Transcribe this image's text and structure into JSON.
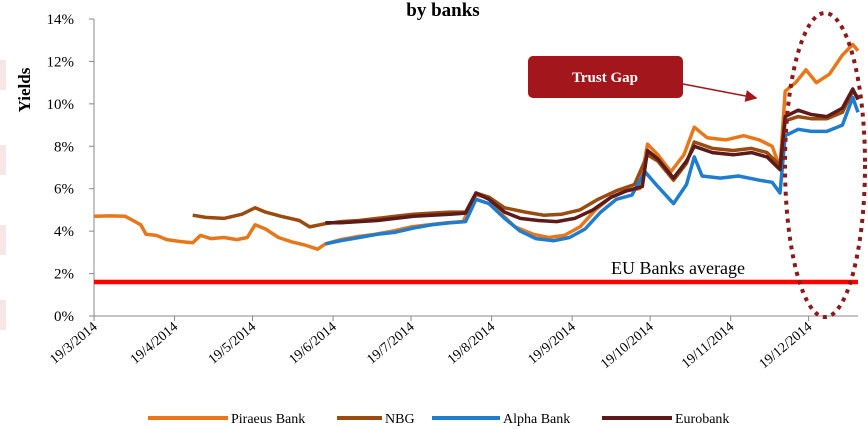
{
  "chart_data": {
    "type": "line",
    "title": "by banks",
    "ylabel": "Yields",
    "xlabel": "",
    "y_ticks": [
      "0%",
      "2%",
      "4%",
      "6%",
      "8%",
      "10%",
      "12%",
      "14%"
    ],
    "ylim": [
      0,
      14
    ],
    "x_ticks": [
      "19/3/2014",
      "19/4/2014",
      "19/5/2014",
      "19/6/2014",
      "19/7/2014",
      "19/8/2014",
      "19/9/2014",
      "19/10/2014",
      "19/11/2014",
      "19/12/2014"
    ],
    "xlim": [
      "2014-03-19",
      "2015-01-07"
    ],
    "grid": false,
    "legend_position": "bottom",
    "reference_line": {
      "label": "EU Banks average",
      "value": 1.6,
      "color": "#ff0000"
    },
    "annotation": {
      "label": "Trust Gap",
      "box_color": "#a3161c",
      "ellipse_color": "#8b1a1a"
    },
    "series": [
      {
        "name": "Piraeus Bank",
        "color": "#e8771c",
        "points": [
          [
            "2014-03-19",
            4.7
          ],
          [
            "2014-03-25",
            4.72
          ],
          [
            "2014-03-31",
            4.7
          ],
          [
            "2014-04-03",
            4.5
          ],
          [
            "2014-04-06",
            4.3
          ],
          [
            "2014-04-08",
            3.85
          ],
          [
            "2014-04-12",
            3.8
          ],
          [
            "2014-04-16",
            3.6
          ],
          [
            "2014-04-22",
            3.5
          ],
          [
            "2014-04-26",
            3.45
          ],
          [
            "2014-04-29",
            3.8
          ],
          [
            "2014-05-03",
            3.65
          ],
          [
            "2014-05-08",
            3.7
          ],
          [
            "2014-05-13",
            3.6
          ],
          [
            "2014-05-17",
            3.7
          ],
          [
            "2014-05-20",
            4.3
          ],
          [
            "2014-05-24",
            4.1
          ],
          [
            "2014-05-29",
            3.7
          ],
          [
            "2014-06-03",
            3.5
          ],
          [
            "2014-06-08",
            3.35
          ],
          [
            "2014-06-13",
            3.15
          ],
          [
            "2014-06-16",
            3.4
          ],
          [
            "2014-06-22",
            3.6
          ],
          [
            "2014-06-29",
            3.75
          ],
          [
            "2014-07-05",
            3.85
          ],
          [
            "2014-07-12",
            4.0
          ],
          [
            "2014-07-19",
            4.2
          ],
          [
            "2014-07-26",
            4.3
          ],
          [
            "2014-08-02",
            4.4
          ],
          [
            "2014-08-08",
            4.45
          ],
          [
            "2014-08-13",
            5.7
          ],
          [
            "2014-08-18",
            5.6
          ],
          [
            "2014-08-22",
            4.9
          ],
          [
            "2014-08-28",
            4.2
          ],
          [
            "2014-09-04",
            3.85
          ],
          [
            "2014-09-10",
            3.7
          ],
          [
            "2014-09-16",
            3.8
          ],
          [
            "2014-09-22",
            4.2
          ],
          [
            "2014-09-28",
            5.0
          ],
          [
            "2014-10-04",
            5.6
          ],
          [
            "2014-10-10",
            5.9
          ],
          [
            "2014-10-15",
            6.0
          ],
          [
            "2014-10-18",
            8.1
          ],
          [
            "2014-10-22",
            7.6
          ],
          [
            "2014-10-27",
            6.8
          ],
          [
            "2014-11-01",
            7.6
          ],
          [
            "2014-11-05",
            8.9
          ],
          [
            "2014-11-10",
            8.4
          ],
          [
            "2014-11-17",
            8.3
          ],
          [
            "2014-11-24",
            8.5
          ],
          [
            "2014-11-30",
            8.3
          ],
          [
            "2014-12-05",
            8.0
          ],
          [
            "2014-12-08",
            7.0
          ],
          [
            "2014-12-10",
            10.6
          ],
          [
            "2014-12-14",
            11.0
          ],
          [
            "2014-12-18",
            11.6
          ],
          [
            "2014-12-22",
            11.0
          ],
          [
            "2014-12-27",
            11.4
          ],
          [
            "2015-01-01",
            12.3
          ],
          [
            "2015-01-05",
            12.8
          ],
          [
            "2015-01-07",
            12.5
          ]
        ]
      },
      {
        "name": "NBG",
        "color": "#9a4b0f",
        "points": [
          [
            "2014-04-26",
            4.75
          ],
          [
            "2014-05-01",
            4.65
          ],
          [
            "2014-05-08",
            4.6
          ],
          [
            "2014-05-15",
            4.8
          ],
          [
            "2014-05-20",
            5.1
          ],
          [
            "2014-05-24",
            4.9
          ],
          [
            "2014-05-30",
            4.7
          ],
          [
            "2014-06-06",
            4.5
          ],
          [
            "2014-06-10",
            4.2
          ],
          [
            "2014-06-16",
            4.35
          ],
          [
            "2014-06-22",
            4.45
          ],
          [
            "2014-06-29",
            4.5
          ],
          [
            "2014-07-06",
            4.6
          ],
          [
            "2014-07-13",
            4.7
          ],
          [
            "2014-07-20",
            4.8
          ],
          [
            "2014-07-27",
            4.85
          ],
          [
            "2014-08-03",
            4.9
          ],
          [
            "2014-08-09",
            4.9
          ],
          [
            "2014-08-13",
            5.8
          ],
          [
            "2014-08-18",
            5.6
          ],
          [
            "2014-08-24",
            5.1
          ],
          [
            "2014-09-01",
            4.9
          ],
          [
            "2014-09-08",
            4.75
          ],
          [
            "2014-09-15",
            4.8
          ],
          [
            "2014-09-22",
            5.0
          ],
          [
            "2014-09-29",
            5.5
          ],
          [
            "2014-10-06",
            5.9
          ],
          [
            "2014-10-13",
            6.2
          ],
          [
            "2014-10-18",
            7.6
          ],
          [
            "2014-10-22",
            7.3
          ],
          [
            "2014-10-28",
            6.4
          ],
          [
            "2014-11-02",
            7.2
          ],
          [
            "2014-11-05",
            8.2
          ],
          [
            "2014-11-12",
            7.9
          ],
          [
            "2014-11-20",
            7.8
          ],
          [
            "2014-11-27",
            7.9
          ],
          [
            "2014-12-03",
            7.7
          ],
          [
            "2014-12-08",
            7.1
          ],
          [
            "2014-12-10",
            9.2
          ],
          [
            "2014-12-15",
            9.4
          ],
          [
            "2014-12-20",
            9.3
          ],
          [
            "2014-12-26",
            9.3
          ],
          [
            "2015-01-01",
            9.6
          ],
          [
            "2015-01-05",
            10.6
          ],
          [
            "2015-01-07",
            10.3
          ]
        ]
      },
      {
        "name": "Alpha Bank",
        "color": "#1f7ccf",
        "points": [
          [
            "2014-06-16",
            3.4
          ],
          [
            "2014-06-22",
            3.55
          ],
          [
            "2014-06-29",
            3.7
          ],
          [
            "2014-07-06",
            3.85
          ],
          [
            "2014-07-13",
            3.95
          ],
          [
            "2014-07-20",
            4.15
          ],
          [
            "2014-07-27",
            4.3
          ],
          [
            "2014-08-03",
            4.4
          ],
          [
            "2014-08-09",
            4.45
          ],
          [
            "2014-08-13",
            5.5
          ],
          [
            "2014-08-18",
            5.3
          ],
          [
            "2014-08-24",
            4.6
          ],
          [
            "2014-08-30",
            4.0
          ],
          [
            "2014-09-05",
            3.65
          ],
          [
            "2014-09-12",
            3.55
          ],
          [
            "2014-09-18",
            3.7
          ],
          [
            "2014-09-24",
            4.1
          ],
          [
            "2014-09-30",
            4.9
          ],
          [
            "2014-10-06",
            5.5
          ],
          [
            "2014-10-12",
            5.7
          ],
          [
            "2014-10-17",
            6.8
          ],
          [
            "2014-10-22",
            6.1
          ],
          [
            "2014-10-28",
            5.3
          ],
          [
            "2014-11-02",
            6.2
          ],
          [
            "2014-11-05",
            7.5
          ],
          [
            "2014-11-08",
            6.6
          ],
          [
            "2014-11-15",
            6.5
          ],
          [
            "2014-11-22",
            6.6
          ],
          [
            "2014-11-30",
            6.4
          ],
          [
            "2014-12-05",
            6.3
          ],
          [
            "2014-12-08",
            5.8
          ],
          [
            "2014-12-10",
            8.5
          ],
          [
            "2014-12-15",
            8.8
          ],
          [
            "2014-12-20",
            8.7
          ],
          [
            "2014-12-26",
            8.7
          ],
          [
            "2015-01-01",
            9.0
          ],
          [
            "2015-01-05",
            10.3
          ],
          [
            "2015-01-07",
            9.6
          ]
        ]
      },
      {
        "name": "Eurobank",
        "color": "#5c1a1a",
        "points": [
          [
            "2014-06-16",
            4.4
          ],
          [
            "2014-06-22",
            4.4
          ],
          [
            "2014-06-29",
            4.45
          ],
          [
            "2014-07-06",
            4.5
          ],
          [
            "2014-07-13",
            4.6
          ],
          [
            "2014-07-20",
            4.7
          ],
          [
            "2014-07-27",
            4.75
          ],
          [
            "2014-08-03",
            4.8
          ],
          [
            "2014-08-09",
            4.85
          ],
          [
            "2014-08-13",
            5.8
          ],
          [
            "2014-08-18",
            5.5
          ],
          [
            "2014-08-24",
            4.9
          ],
          [
            "2014-08-30",
            4.6
          ],
          [
            "2014-09-06",
            4.5
          ],
          [
            "2014-09-13",
            4.45
          ],
          [
            "2014-09-20",
            4.6
          ],
          [
            "2014-09-27",
            5.0
          ],
          [
            "2014-10-04",
            5.6
          ],
          [
            "2014-10-10",
            5.9
          ],
          [
            "2014-10-16",
            6.1
          ],
          [
            "2014-10-18",
            7.8
          ],
          [
            "2014-10-22",
            7.4
          ],
          [
            "2014-10-28",
            6.5
          ],
          [
            "2014-11-02",
            7.3
          ],
          [
            "2014-11-05",
            8.0
          ],
          [
            "2014-11-12",
            7.7
          ],
          [
            "2014-11-20",
            7.6
          ],
          [
            "2014-11-27",
            7.7
          ],
          [
            "2014-12-03",
            7.5
          ],
          [
            "2014-12-08",
            6.9
          ],
          [
            "2014-12-10",
            9.4
          ],
          [
            "2014-12-15",
            9.7
          ],
          [
            "2014-12-20",
            9.5
          ],
          [
            "2014-12-26",
            9.4
          ],
          [
            "2015-01-01",
            9.8
          ],
          [
            "2015-01-05",
            10.7
          ],
          [
            "2015-01-07",
            10.2
          ]
        ]
      }
    ]
  }
}
